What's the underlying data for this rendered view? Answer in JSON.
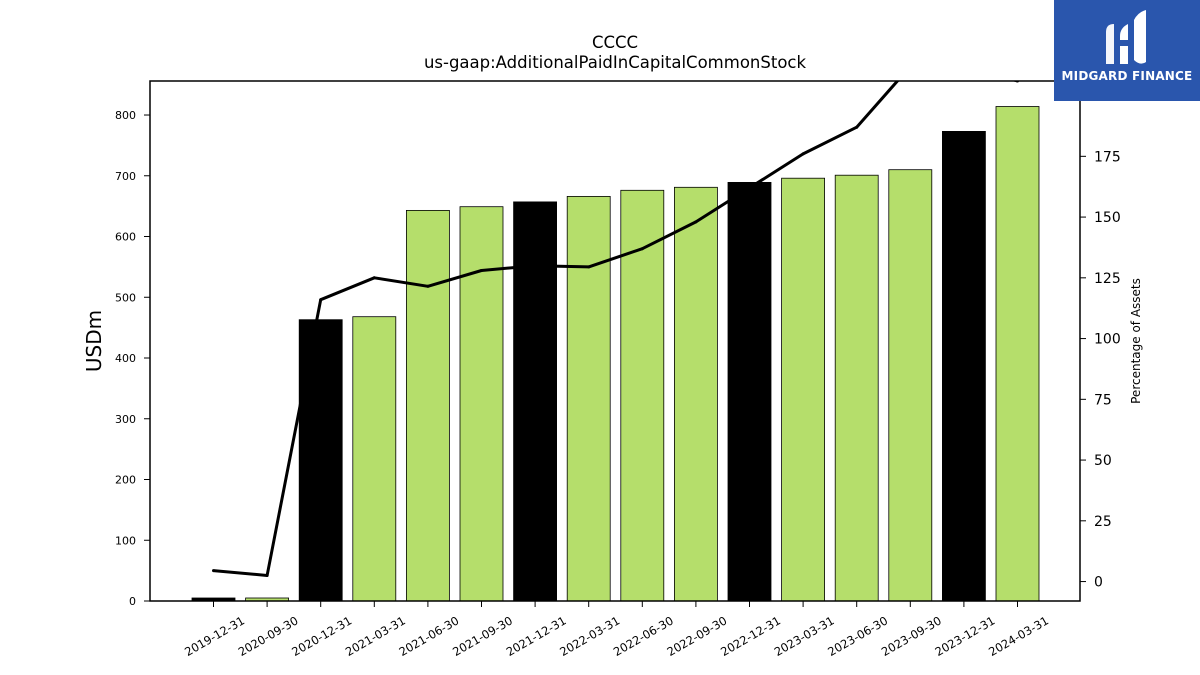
{
  "chart_data": {
    "type": "bar+line",
    "title": "CCCC",
    "subtitle": "us-gaap:AdditionalPaidInCapitalCommonStock",
    "ylabel": "USDm",
    "y2label": "Percentage of Assets",
    "categories": [
      "2019-12-31",
      "2020-09-30",
      "2020-12-31",
      "2021-03-31",
      "2021-06-30",
      "2021-09-30",
      "2021-12-31",
      "2022-03-31",
      "2022-06-30",
      "2022-09-30",
      "2022-12-31",
      "2023-03-31",
      "2023-06-30",
      "2023-09-30",
      "2023-12-31",
      "2024-03-31"
    ],
    "bars": {
      "values": [
        5,
        5,
        463,
        468,
        643,
        649,
        657,
        666,
        676,
        681,
        689,
        696,
        701,
        710,
        773,
        814
      ],
      "colors": [
        "#000000",
        "#b5de6b",
        "#000000",
        "#b5de6b",
        "#b5de6b",
        "#b5de6b",
        "#000000",
        "#b5de6b",
        "#b5de6b",
        "#b5de6b",
        "#000000",
        "#b5de6b",
        "#b5de6b",
        "#b5de6b",
        "#000000",
        "#b5de6b"
      ]
    },
    "line": {
      "values": [
        4.5,
        2.5,
        116,
        125,
        121.5,
        128,
        130,
        129.5,
        137,
        148,
        162,
        176,
        187,
        212,
        212,
        206
      ],
      "color": "#000000"
    },
    "ylim": [
      0,
      856
    ],
    "y2lim": [
      -8,
      206
    ],
    "yticks": [
      0,
      100,
      200,
      300,
      400,
      500,
      600,
      700,
      800
    ],
    "y2ticks": [
      0,
      25,
      50,
      75,
      100,
      125,
      150,
      175
    ],
    "grid": false
  },
  "logo": {
    "text": "MIDGARD FINANCE",
    "background": "#2a56ad"
  }
}
